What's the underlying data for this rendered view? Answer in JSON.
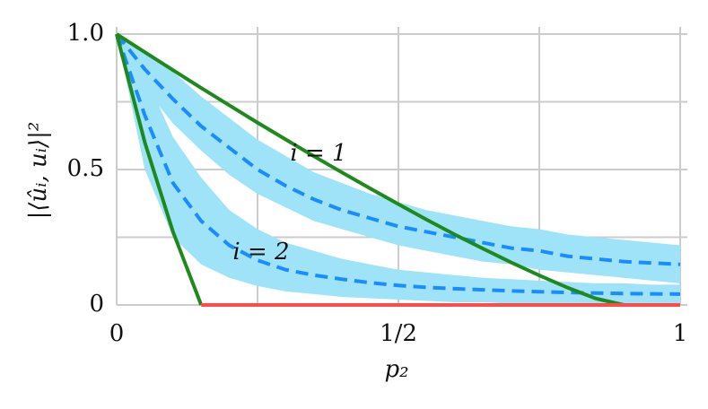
{
  "chart_data": {
    "type": "line",
    "y_label": "|⟨ûᵢ, uᵢ⟩|²",
    "x_label": "p₂",
    "xlim": [
      0,
      1
    ],
    "ylim": [
      0,
      1
    ],
    "xticks": [
      0,
      {
        "value": 0.5,
        "label": "1/2"
      },
      1
    ],
    "yticks": [
      0,
      0.5,
      {
        "value": 1,
        "label": "1.0"
      }
    ],
    "xminor": [
      0.25,
      0.75
    ],
    "yminor": [
      0.25,
      0.75
    ],
    "grid": true,
    "grid_color": "#cccccc",
    "x": [
      0,
      0.05,
      0.1,
      0.15,
      0.2,
      0.25,
      0.3,
      0.35,
      0.4,
      0.45,
      0.5,
      0.55,
      0.6,
      0.65,
      0.7,
      0.75,
      0.8,
      0.85,
      0.9,
      0.95,
      1
    ],
    "bands": [
      {
        "color": "#9fe3f8",
        "lower": [
          1,
          0.8,
          0.67,
          0.57,
          0.48,
          0.41,
          0.36,
          0.31,
          0.28,
          0.25,
          0.22,
          0.2,
          0.18,
          0.16,
          0.15,
          0.13,
          0.12,
          0.11,
          0.1,
          0.09,
          0.08
        ],
        "upper": [
          1,
          0.93,
          0.86,
          0.77,
          0.69,
          0.61,
          0.55,
          0.49,
          0.45,
          0.41,
          0.38,
          0.35,
          0.33,
          0.31,
          0.29,
          0.28,
          0.26,
          0.25,
          0.24,
          0.23,
          0.22
        ]
      },
      {
        "color": "#9fe3f8",
        "lower": [
          1,
          0.5,
          0.25,
          0.15,
          0.1,
          0.07,
          0.05,
          0.04,
          0.03,
          0.025,
          0.02,
          0.015,
          0.01,
          0.01,
          0.005,
          0.005,
          0,
          0,
          0,
          0,
          0
        ],
        "upper": [
          1,
          0.85,
          0.62,
          0.47,
          0.35,
          0.28,
          0.23,
          0.2,
          0.17,
          0.15,
          0.13,
          0.12,
          0.11,
          0.1,
          0.095,
          0.09,
          0.085,
          0.08,
          0.08,
          0.075,
          0.075
        ]
      }
    ],
    "series": [
      {
        "color": "#1a8cff",
        "dashed": true,
        "values": [
          1,
          0.87,
          0.76,
          0.66,
          0.58,
          0.5,
          0.44,
          0.39,
          0.35,
          0.32,
          0.29,
          0.27,
          0.25,
          0.23,
          0.21,
          0.2,
          0.18,
          0.17,
          0.16,
          0.155,
          0.15
        ]
      },
      {
        "color": "#1a8cff",
        "dashed": true,
        "values": [
          1,
          0.7,
          0.45,
          0.31,
          0.22,
          0.165,
          0.13,
          0.11,
          0.095,
          0.082,
          0.072,
          0.065,
          0.06,
          0.056,
          0.052,
          0.049,
          0.046,
          0.044,
          0.042,
          0.041,
          0.04
        ]
      },
      {
        "color": "#1e8a1e",
        "dashed": false,
        "values": [
          1,
          0.933,
          0.867,
          0.801,
          0.737,
          0.673,
          0.611,
          0.549,
          0.489,
          0.43,
          0.372,
          0.315,
          0.26,
          0.208,
          0.157,
          0.109,
          0.064,
          0.024,
          0,
          null,
          null
        ]
      },
      {
        "color": "#1e8a1e",
        "dashed": false,
        "x": [
          0,
          0.05,
          0.1,
          0.15
        ],
        "values": [
          1,
          0.6,
          0.27,
          0
        ]
      },
      {
        "color": "#ff4b4b",
        "dashed": false,
        "x": [
          0.15,
          1
        ],
        "values": [
          0,
          0
        ]
      }
    ],
    "annotations": [
      "i = 1",
      "i = 2"
    ]
  }
}
